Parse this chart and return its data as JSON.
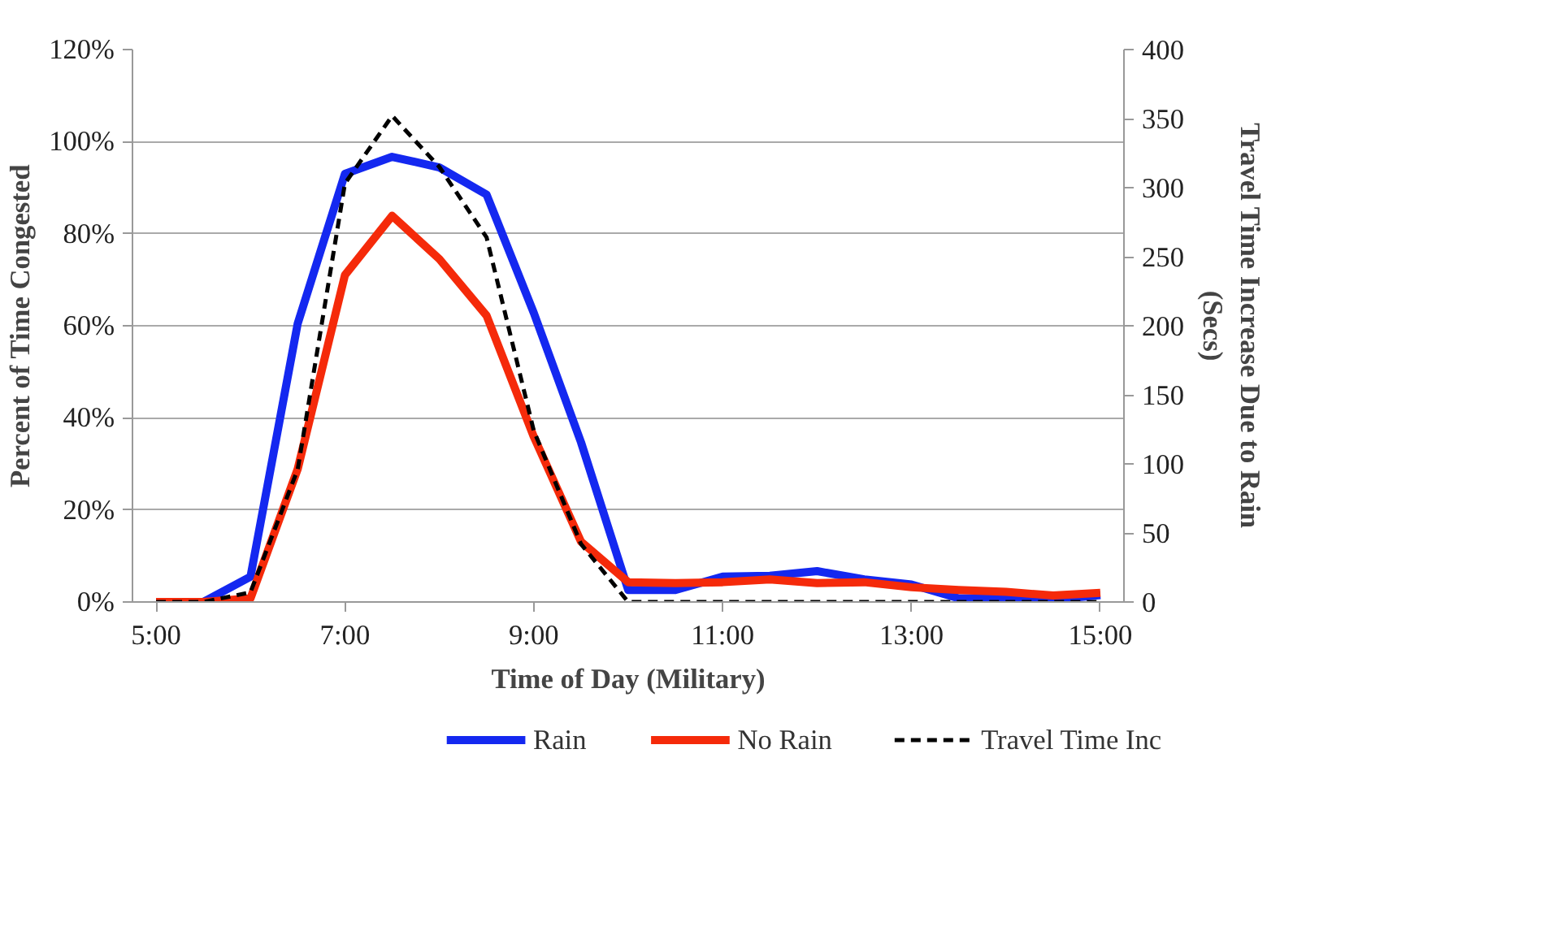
{
  "chart_data": {
    "type": "line",
    "xlabel": "Time of Day (Military)",
    "ylabel": "Percent of Time Congested",
    "y2label": "Travel Time Increase Due to Rain\n(Secs)",
    "x": [
      5,
      5.5,
      6,
      6.5,
      7,
      7.5,
      8,
      8.5,
      9,
      9.5,
      10,
      10.5,
      11,
      11.5,
      12,
      12.5,
      13,
      13.5,
      14,
      14.5,
      15
    ],
    "series": [
      {
        "name": "Rain",
        "color": "#1428f0",
        "values": [
          0,
          0,
          5.5,
          60.5,
          93,
          96.7,
          94.4,
          88.5,
          62.8,
          34.7,
          2.6,
          2.6,
          5.5,
          5.7,
          6.7,
          4.9,
          3.8,
          0.8,
          0.8,
          0.5,
          1.5
        ]
      },
      {
        "name": "No Rain",
        "color": "#f52a0a",
        "values": [
          0,
          0,
          0.8,
          28.9,
          71,
          83.9,
          74.5,
          62.2,
          35.9,
          13.1,
          4.3,
          4.1,
          4.3,
          4.9,
          4.1,
          4.3,
          3.2,
          2.6,
          2.2,
          1.4,
          2.0
        ]
      },
      {
        "name": "Travel Time Inc",
        "color": "#000000",
        "axis": "y2",
        "line_style": "dashed",
        "values": [
          0,
          0,
          7,
          96,
          303,
          352,
          315,
          264,
          124,
          42,
          0,
          0,
          0,
          0,
          0,
          0,
          0,
          0,
          0,
          0,
          0
        ]
      }
    ],
    "xlim": [
      4.75,
      15.25
    ],
    "xticks": [
      {
        "value": 5,
        "label": "5:00"
      },
      {
        "value": 7,
        "label": "7:00"
      },
      {
        "value": 9,
        "label": "9:00"
      },
      {
        "value": 11,
        "label": "11:00"
      },
      {
        "value": 13,
        "label": "13:00"
      },
      {
        "value": 15,
        "label": "15:00"
      }
    ],
    "ylim": [
      0,
      120
    ],
    "yticks": [
      {
        "value": 0,
        "label": "0%"
      },
      {
        "value": 20,
        "label": "20%"
      },
      {
        "value": 40,
        "label": "40%"
      },
      {
        "value": 60,
        "label": "60%"
      },
      {
        "value": 80,
        "label": "80%"
      },
      {
        "value": 100,
        "label": "100%"
      },
      {
        "value": 120,
        "label": "120%"
      }
    ],
    "y2lim": [
      0,
      400
    ],
    "y2ticks": [
      0,
      50,
      100,
      150,
      200,
      250,
      300,
      350,
      400
    ],
    "grid": "y",
    "legend": "bottom"
  }
}
